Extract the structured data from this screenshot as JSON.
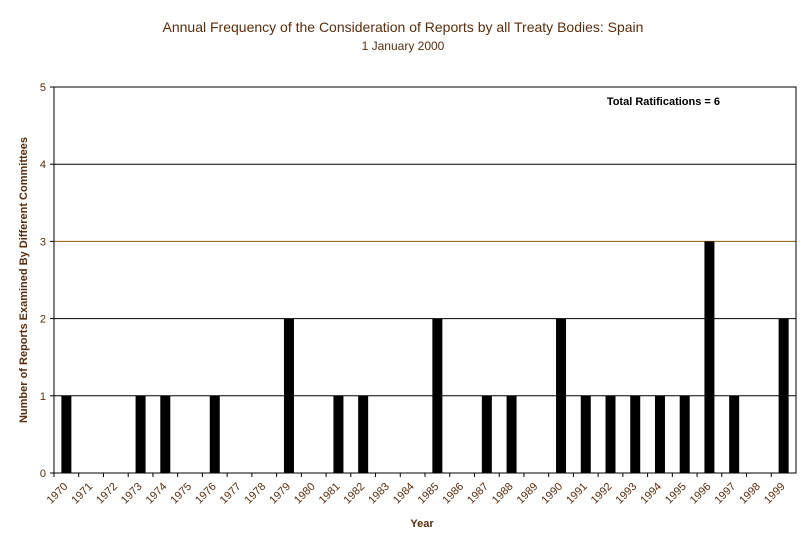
{
  "chart_data": {
    "type": "bar",
    "title": "Annual Frequency of the Consideration of Reports by all Treaty Bodies: Spain",
    "subtitle": "1 January 2000",
    "xlabel": "Year",
    "ylabel": "Number of Reports Examined By Different Committees",
    "annotation": "Total Ratifications = 6",
    "categories": [
      "1970",
      "1971",
      "1972",
      "1973",
      "1974",
      "1975",
      "1976",
      "1977",
      "1978",
      "1979",
      "1980",
      "1981",
      "1982",
      "1983",
      "1984",
      "1985",
      "1986",
      "1987",
      "1988",
      "1989",
      "1990",
      "1991",
      "1992",
      "1993",
      "1994",
      "1995",
      "1996",
      "1997",
      "1998",
      "1999"
    ],
    "values": [
      1,
      0,
      0,
      1,
      1,
      0,
      1,
      0,
      0,
      2,
      0,
      1,
      1,
      0,
      0,
      2,
      0,
      1,
      1,
      0,
      2,
      1,
      1,
      1,
      1,
      1,
      3,
      1,
      0,
      2
    ],
    "ylim": [
      0,
      5
    ],
    "yticks": [
      "0",
      "1",
      "2",
      "3",
      "4",
      "5"
    ],
    "grid": true,
    "legend": "none",
    "colors": {
      "bar": "#000000",
      "grid": "#000000",
      "gridline_accent": "#8b5a00",
      "text": "#5a2d0c"
    }
  }
}
